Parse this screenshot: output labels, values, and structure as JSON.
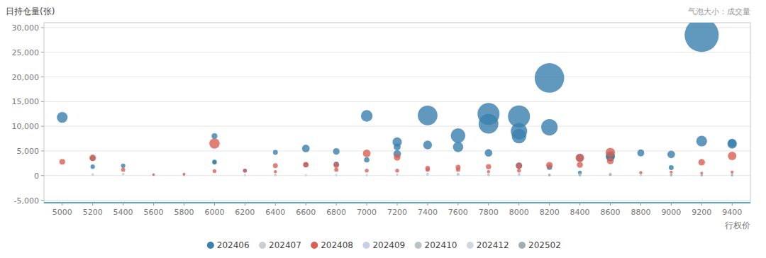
{
  "chart_data": {
    "type": "scatter",
    "ylabel": "日持仓量(张)",
    "xlabel": "行权价",
    "annotation": "气泡大小：成交量",
    "xlim": [
      4880,
      9520
    ],
    "ylim": [
      -5500,
      31000
    ],
    "xticks": [
      5000,
      5200,
      5400,
      5600,
      5800,
      6000,
      6200,
      6400,
      6600,
      6800,
      7000,
      7200,
      7400,
      7600,
      7800,
      8000,
      8200,
      8400,
      8600,
      8800,
      9000,
      9200,
      9400
    ],
    "yticks": [
      {
        "value": -5000,
        "label": "-5,000"
      },
      0,
      {
        "value": 5000,
        "label": "5,000"
      },
      {
        "value": 10000,
        "label": "10,000"
      },
      {
        "value": 15000,
        "label": "15,000"
      },
      {
        "value": 20000,
        "label": "20,000"
      },
      {
        "value": 25000,
        "label": "25,000"
      },
      {
        "value": 30000,
        "label": "30,000"
      }
    ],
    "grid": true,
    "legend": "bottom",
    "series": [
      {
        "name": "202406",
        "color": "#3a7fae",
        "x": [
          5000,
          5200,
          5200,
          5400,
          6000,
          6000,
          6000,
          6200,
          6400,
          6600,
          6600,
          6800,
          6800,
          7000,
          7000,
          7200,
          7200,
          7200,
          7400,
          7400,
          7600,
          7600,
          7800,
          7800,
          7800,
          8000,
          8000,
          8000,
          8000,
          8200,
          8200,
          8400,
          8400,
          8600,
          8600,
          8600,
          8800,
          9000,
          9000,
          9200,
          9200,
          9400,
          9400,
          8200
        ],
        "values": [
          11800,
          3500,
          1800,
          2000,
          8000,
          2700,
          2800,
          1000,
          4700,
          5500,
          2200,
          2300,
          4900,
          12100,
          3200,
          6800,
          4400,
          5800,
          12200,
          6200,
          8100,
          5800,
          12500,
          10500,
          4600,
          12000,
          9000,
          8000,
          2000,
          9800,
          1700,
          3600,
          600,
          4000,
          3800,
          3600,
          4600,
          4300,
          1600,
          28500,
          7000,
          6400,
          6600,
          19800
        ],
        "sizes": [
          120,
          30,
          20,
          20,
          35,
          20,
          20,
          15,
          25,
          60,
          25,
          30,
          45,
          140,
          30,
          90,
          60,
          50,
          400,
          80,
          220,
          110,
          500,
          400,
          60,
          500,
          280,
          220,
          45,
          280,
          30,
          60,
          15,
          90,
          75,
          50,
          50,
          60,
          25,
          1200,
          120,
          90,
          75,
          900
        ]
      },
      {
        "name": "202407",
        "color": "#c8d0d4",
        "x": [
          5200,
          5400,
          5800,
          5800,
          6200,
          6400,
          6400,
          6600,
          6800,
          7000,
          7200,
          7400,
          7600,
          7800,
          8000,
          8200,
          8400,
          8600,
          8800,
          9000,
          9200,
          9400
        ],
        "values": [
          200,
          300,
          200,
          100,
          100,
          100,
          200,
          100,
          100,
          100,
          200,
          300,
          200,
          100,
          200,
          100,
          200,
          200,
          100,
          200,
          100,
          100
        ],
        "sizes": [
          8,
          8,
          7,
          6,
          6,
          6,
          7,
          6,
          6,
          6,
          7,
          8,
          7,
          6,
          7,
          6,
          7,
          7,
          6,
          7,
          6,
          6
        ]
      },
      {
        "name": "202408",
        "color": "#d95f52",
        "x": [
          5000,
          5200,
          5400,
          5600,
          5800,
          6000,
          6000,
          6200,
          6400,
          6400,
          6600,
          6800,
          6800,
          7000,
          7000,
          7200,
          7200,
          7400,
          7400,
          7600,
          7600,
          7800,
          7800,
          8000,
          8000,
          8200,
          8400,
          8400,
          8600,
          8600,
          8800,
          9000,
          9200,
          9200,
          9400,
          9400
        ],
        "values": [
          2800,
          3600,
          1200,
          200,
          300,
          6500,
          900,
          1000,
          2000,
          800,
          2200,
          2100,
          1200,
          1000,
          4500,
          3700,
          1000,
          1200,
          1500,
          1200,
          1700,
          1800,
          800,
          2000,
          1000,
          2100,
          3600,
          2200,
          4700,
          3000,
          600,
          700,
          2700,
          500,
          4000,
          700
        ],
        "sizes": [
          35,
          45,
          18,
          7,
          8,
          110,
          15,
          15,
          25,
          10,
          30,
          30,
          18,
          15,
          60,
          45,
          15,
          18,
          22,
          18,
          25,
          28,
          10,
          38,
          15,
          45,
          75,
          38,
          90,
          50,
          10,
          10,
          45,
          8,
          75,
          10
        ]
      },
      {
        "name": "202409",
        "color": "#c8cfe8",
        "x": [
          7400,
          7600,
          7800,
          8000,
          8200,
          8400,
          8600,
          9400
        ],
        "values": [
          300,
          200,
          200,
          300,
          200,
          100,
          200,
          200
        ],
        "sizes": [
          7,
          6,
          6,
          7,
          6,
          6,
          6,
          6
        ]
      },
      {
        "name": "202410",
        "color": "#b8c4c8",
        "x": [
          7600,
          7800,
          8000,
          8200,
          8400,
          8600,
          9000
        ],
        "values": [
          300,
          200,
          200,
          100,
          200,
          200,
          100
        ],
        "sizes": [
          7,
          6,
          6,
          6,
          6,
          6,
          6
        ]
      },
      {
        "name": "202412",
        "color": "#d0d8dc",
        "x": [
          8000,
          8400,
          8600,
          9000,
          9200,
          9400
        ],
        "values": [
          100,
          100,
          400,
          200,
          100,
          100
        ],
        "sizes": [
          6,
          6,
          8,
          7,
          6,
          6
        ]
      },
      {
        "name": "202502",
        "color": "#a0aeb4",
        "x": [
          8200,
          8400,
          8600,
          9000,
          9200,
          9400
        ],
        "values": [
          100,
          100,
          200,
          100,
          100,
          100
        ],
        "sizes": [
          6,
          6,
          7,
          6,
          6,
          6
        ]
      }
    ]
  }
}
